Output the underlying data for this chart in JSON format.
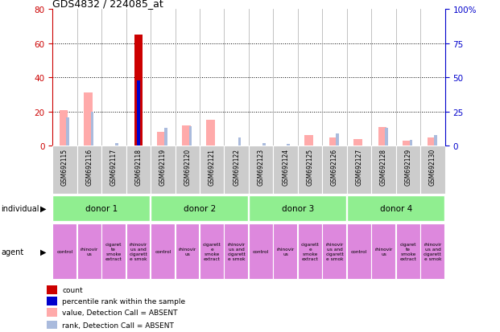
{
  "title": "GDS4832 / 224085_at",
  "samples": [
    "GSM692115",
    "GSM692116",
    "GSM692117",
    "GSM692118",
    "GSM692119",
    "GSM692120",
    "GSM692121",
    "GSM692122",
    "GSM692123",
    "GSM692124",
    "GSM692125",
    "GSM692126",
    "GSM692127",
    "GSM692128",
    "GSM692129",
    "GSM692130"
  ],
  "count_values": [
    0,
    0,
    0,
    65,
    0,
    0,
    0,
    0,
    0,
    0,
    0,
    0,
    0,
    0,
    0,
    0
  ],
  "rank_values": [
    0,
    0,
    0,
    48,
    0,
    0,
    0,
    0,
    0,
    0,
    0,
    0,
    0,
    0,
    0,
    0
  ],
  "value_absent": [
    21,
    31,
    0,
    0,
    8,
    12,
    15,
    0,
    0,
    0,
    6,
    5,
    4,
    11,
    3,
    5
  ],
  "rank_absent": [
    21,
    25,
    2,
    0,
    13,
    14,
    0,
    6,
    2,
    1,
    0,
    9,
    0,
    13,
    4,
    8
  ],
  "ylim_left": [
    0,
    80
  ],
  "ylim_right": [
    0,
    100
  ],
  "yticks_left": [
    0,
    20,
    40,
    60,
    80
  ],
  "yticks_right": [
    0,
    25,
    50,
    75,
    100
  ],
  "donors": [
    {
      "label": "donor 1",
      "start": 0,
      "end": 4
    },
    {
      "label": "donor 2",
      "start": 4,
      "end": 8
    },
    {
      "label": "donor 3",
      "start": 8,
      "end": 12
    },
    {
      "label": "donor 4",
      "start": 12,
      "end": 16
    }
  ],
  "agent_labels": [
    "control",
    "rhinovir\nus",
    "cigaret\nte\nsmoke\nextract",
    "rhinovir\nus and\ncigarett\ne smok",
    "control",
    "rhinovir\nus",
    "cigarett\ne\nsmoke\nextract",
    "rhinovir\nus and\ncigarett\ne smok",
    "control",
    "rhinovir\nus",
    "cigarett\ne\nsmoke\nextract",
    "rhinovir\nus and\ncigarett\ne smok",
    "control",
    "rhinovir\nus",
    "cigaret\nte\nsmoke\nextract",
    "rhinovir\nus and\ncigarett\ne smok"
  ],
  "color_count": "#cc0000",
  "color_rank": "#0000cc",
  "color_value_absent": "#ffaaaa",
  "color_rank_absent": "#aabbdd",
  "color_donor_bg": "#90ee90",
  "color_agent_bg": "#dd88dd",
  "color_sample_bg": "#cccccc",
  "legend_items": [
    {
      "color": "#cc0000",
      "label": "count"
    },
    {
      "color": "#0000cc",
      "label": "percentile rank within the sample"
    },
    {
      "color": "#ffaaaa",
      "label": "value, Detection Call = ABSENT"
    },
    {
      "color": "#aabbdd",
      "label": "rank, Detection Call = ABSENT"
    }
  ]
}
